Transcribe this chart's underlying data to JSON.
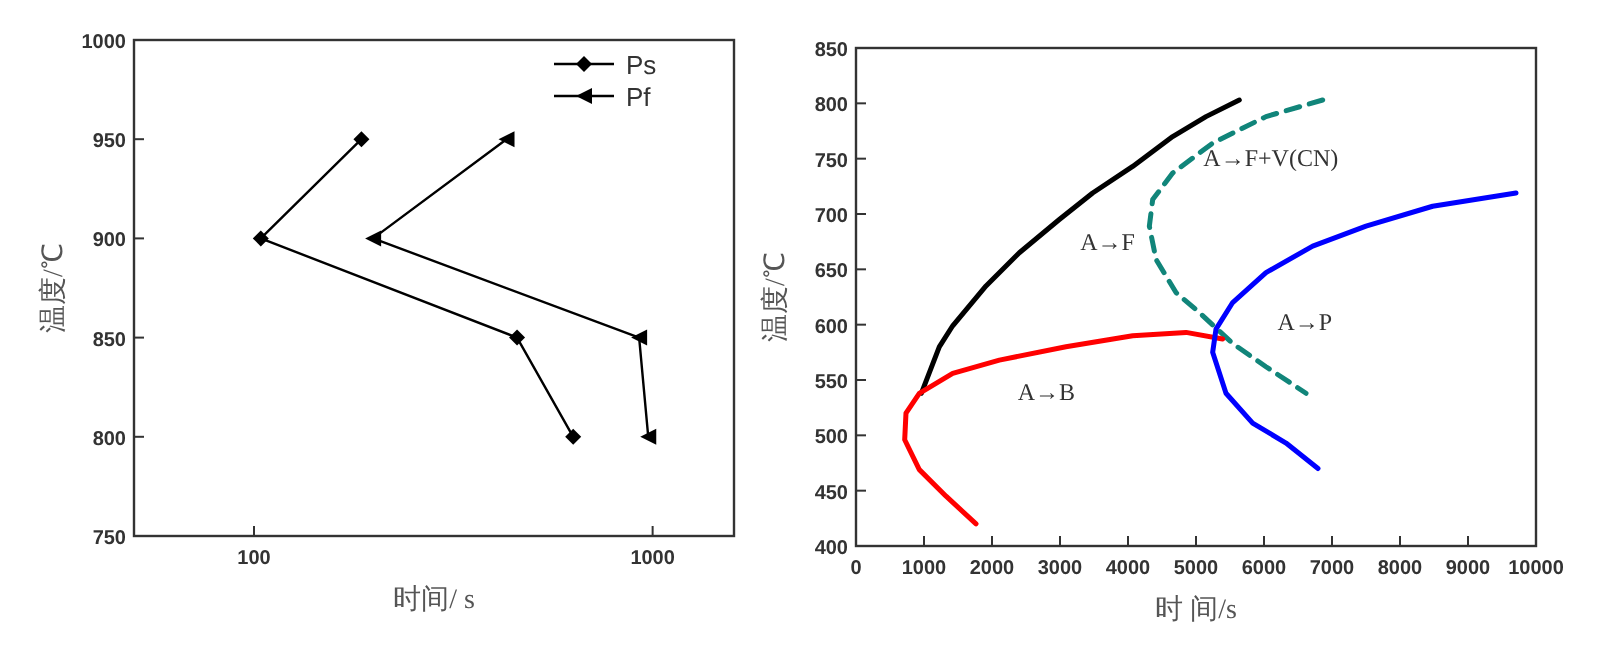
{
  "chart_data": [
    {
      "type": "line",
      "xlabel": "时间/ s",
      "ylabel": "温度/℃",
      "log": "x",
      "xlim": [
        50,
        1600
      ],
      "ylim": [
        750,
        1000
      ],
      "xticks": [
        100,
        1000
      ],
      "yticks": [
        750,
        800,
        850,
        900,
        950,
        1000
      ],
      "legend": "top right",
      "grid": false,
      "series": [
        {
          "name": "Ps",
          "color": "#000000",
          "marker": "diamond",
          "x": [
            186,
            104,
            457,
            632
          ],
          "values": [
            950,
            900,
            850,
            800
          ]
        },
        {
          "name": "Pf",
          "color": "#000000",
          "marker": "triangle",
          "x": [
            430,
            199,
            925,
            975
          ],
          "values": [
            950,
            900,
            850,
            800
          ]
        }
      ]
    },
    {
      "type": "line",
      "xlabel": "时 间/s",
      "ylabel": "温度/℃",
      "xlim": [
        0,
        10000
      ],
      "ylim": [
        400,
        850
      ],
      "xticks": [
        0,
        1000,
        2000,
        3000,
        4000,
        5000,
        6000,
        7000,
        8000,
        9000,
        10000
      ],
      "yticks": [
        400,
        450,
        500,
        550,
        600,
        650,
        700,
        750,
        800,
        850
      ],
      "legend": false,
      "grid": false,
      "series": [
        {
          "color": "#000000",
          "line_style": "solid",
          "x": [
            961,
            1225,
            1422,
            1912,
            2402,
            2990,
            3480,
            4069,
            4657,
            5147,
            5637
          ],
          "values": [
            538,
            580,
            599,
            635,
            665,
            695,
            719,
            743,
            770,
            788,
            803
          ]
        },
        {
          "color": "#11857a",
          "line_style": "dashed",
          "x": [
            6863,
            6029,
            5245,
            4657,
            4363,
            4314,
            4412,
            4706,
            5049,
            5539,
            6029,
            6618
          ],
          "values": [
            803,
            788,
            764,
            737,
            713,
            689,
            659,
            629,
            611,
            583,
            562,
            538
          ]
        },
        {
          "color": "#ff0000",
          "line_style": "solid",
          "x": [
            1765,
            1324,
            931,
            716,
            735,
            931,
            1422,
            2108,
            3088,
            4069,
            4853,
            5392
          ],
          "values": [
            420,
            445,
            469,
            496,
            520,
            538,
            556,
            568,
            580,
            590,
            593,
            587
          ]
        },
        {
          "color": "#0000ff",
          "line_style": "solid",
          "x": [
            6794,
            6324,
            5833,
            5441,
            5245,
            5294,
            5539,
            6029,
            6716,
            7500,
            8480,
            9706
          ],
          "values": [
            470,
            493,
            511,
            538,
            575,
            596,
            620,
            647,
            671,
            689,
            707,
            719
          ]
        }
      ],
      "annotations": [
        "A→F+V(CN)",
        "A→F",
        "A→P",
        "A→B"
      ]
    }
  ]
}
